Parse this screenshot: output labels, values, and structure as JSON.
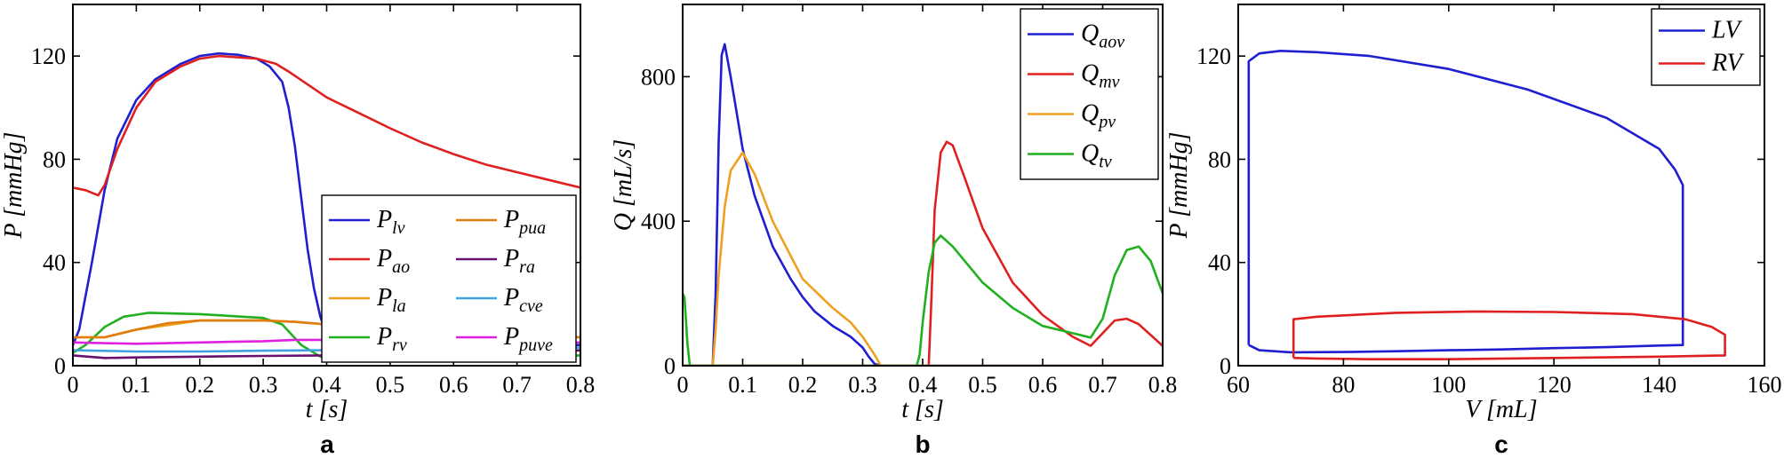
{
  "chart_data": [
    {
      "type": "line",
      "panel": "a",
      "xlabel": "t [s]",
      "ylabel": "P [mmHg]",
      "xlim": [
        0,
        0.8
      ],
      "ylim": [
        0,
        140
      ],
      "xticks": [
        "0",
        "0.1",
        "0.2",
        "0.3",
        "0.4",
        "0.5",
        "0.6",
        "0.7",
        "0.8"
      ],
      "yticks": [
        "0",
        "40",
        "80",
        "120"
      ],
      "legend_position": "lower-right",
      "legend_columns": 2,
      "series": [
        {
          "name": "P",
          "sub": "lv",
          "color": "#1f1fd1",
          "x": [
            0,
            0.01,
            0.03,
            0.05,
            0.07,
            0.1,
            0.13,
            0.17,
            0.2,
            0.23,
            0.26,
            0.29,
            0.31,
            0.33,
            0.34,
            0.35,
            0.36,
            0.37,
            0.38,
            0.39,
            0.4,
            0.42,
            0.45,
            0.5,
            0.6,
            0.7,
            0.8
          ],
          "y": [
            8,
            14,
            40,
            68,
            88,
            103,
            111,
            117,
            120,
            121,
            120.5,
            119,
            116,
            110,
            100,
            85,
            65,
            45,
            30,
            19,
            12,
            8,
            7,
            6.5,
            7,
            7.5,
            8
          ]
        },
        {
          "name": "P",
          "sub": "ao",
          "color": "#e02020",
          "x": [
            0,
            0.02,
            0.04,
            0.05,
            0.07,
            0.1,
            0.13,
            0.17,
            0.2,
            0.23,
            0.26,
            0.29,
            0.32,
            0.34,
            0.4,
            0.45,
            0.5,
            0.55,
            0.6,
            0.65,
            0.7,
            0.75,
            0.8
          ],
          "y": [
            69,
            68,
            66,
            70,
            84,
            100,
            110,
            116,
            119,
            120,
            119.5,
            119,
            117,
            114,
            104,
            98,
            92,
            86.5,
            82,
            78,
            75,
            72,
            69
          ]
        },
        {
          "name": "P",
          "sub": "la",
          "color": "#f0a020",
          "x": [
            0,
            0.05,
            0.1,
            0.2,
            0.3,
            0.35,
            0.4,
            0.5,
            0.6,
            0.7,
            0.8
          ],
          "y": [
            11,
            11,
            14,
            17.5,
            17.5,
            17,
            16,
            14.5,
            13,
            12,
            11
          ]
        },
        {
          "name": "P",
          "sub": "rv",
          "color": "#20b020",
          "x": [
            0,
            0.02,
            0.05,
            0.08,
            0.12,
            0.2,
            0.3,
            0.33,
            0.36,
            0.39,
            0.42,
            0.5,
            0.6,
            0.7,
            0.8
          ],
          "y": [
            5,
            8,
            15,
            19,
            20.5,
            20,
            18.5,
            16,
            8,
            3.5,
            2.5,
            2.5,
            2.8,
            3.2,
            4
          ]
        },
        {
          "name": "P",
          "sub": "pua",
          "color": "#e07d10",
          "x": [
            0,
            0.05,
            0.1,
            0.15,
            0.2,
            0.3,
            0.35,
            0.4,
            0.5,
            0.6,
            0.7,
            0.8
          ],
          "y": [
            11,
            11,
            14,
            16.5,
            17.5,
            17.5,
            17,
            16,
            14.5,
            13,
            12,
            11
          ]
        },
        {
          "name": "P",
          "sub": "ra",
          "color": "#6a1070",
          "x": [
            0,
            0.05,
            0.1,
            0.2,
            0.3,
            0.4,
            0.5,
            0.6,
            0.7,
            0.75,
            0.8
          ],
          "y": [
            4,
            3,
            3.2,
            3.5,
            3.8,
            4,
            4,
            4.2,
            4.5,
            5,
            6
          ]
        },
        {
          "name": "P",
          "sub": "cve",
          "color": "#40a0e0",
          "x": [
            0,
            0.1,
            0.2,
            0.3,
            0.4,
            0.5,
            0.6,
            0.7,
            0.8
          ],
          "y": [
            6,
            5.5,
            5.5,
            5.8,
            6,
            6,
            6.2,
            6.5,
            7
          ]
        },
        {
          "name": "P",
          "sub": "puve",
          "color": "#e020e0",
          "x": [
            0,
            0.1,
            0.2,
            0.3,
            0.35,
            0.4,
            0.5,
            0.6,
            0.7,
            0.8
          ],
          "y": [
            9,
            8.5,
            9,
            9.5,
            10,
            10,
            9.5,
            9,
            8.8,
            9
          ]
        }
      ]
    },
    {
      "type": "line",
      "panel": "b",
      "xlabel": "t [s]",
      "ylabel": "Q [mL/s]",
      "xlim": [
        0,
        0.8
      ],
      "ylim": [
        0,
        1000
      ],
      "xticks": [
        "0",
        "0.1",
        "0.2",
        "0.3",
        "0.4",
        "0.5",
        "0.6",
        "0.7",
        "0.8"
      ],
      "yticks": [
        "0",
        "400",
        "800"
      ],
      "legend_position": "top-right",
      "legend_columns": 1,
      "series": [
        {
          "name": "Q",
          "sub": "aov",
          "color": "#1f1fd1",
          "x": [
            0,
            0.045,
            0.05,
            0.055,
            0.06,
            0.065,
            0.07,
            0.08,
            0.09,
            0.1,
            0.12,
            0.15,
            0.18,
            0.2,
            0.22,
            0.25,
            0.28,
            0.3,
            0.31,
            0.32,
            0.33,
            0.8
          ],
          "y": [
            0,
            0,
            0,
            200,
            620,
            860,
            890,
            800,
            700,
            600,
            470,
            330,
            240,
            190,
            150,
            110,
            80,
            50,
            25,
            5,
            0,
            0
          ]
        },
        {
          "name": "Q",
          "sub": "mv",
          "color": "#e02020",
          "x": [
            0,
            0.41,
            0.415,
            0.42,
            0.43,
            0.44,
            0.45,
            0.47,
            0.5,
            0.55,
            0.6,
            0.65,
            0.68,
            0.7,
            0.72,
            0.74,
            0.76,
            0.78,
            0.8
          ],
          "y": [
            0,
            0,
            200,
            430,
            590,
            620,
            610,
            520,
            380,
            230,
            140,
            80,
            55,
            90,
            125,
            130,
            115,
            85,
            55
          ]
        },
        {
          "name": "Q",
          "sub": "pv",
          "color": "#f0a020",
          "x": [
            0,
            0.045,
            0.05,
            0.055,
            0.06,
            0.07,
            0.08,
            0.1,
            0.12,
            0.15,
            0.2,
            0.25,
            0.28,
            0.3,
            0.32,
            0.33,
            0.8
          ],
          "y": [
            0,
            0,
            0,
            100,
            250,
            440,
            540,
            590,
            530,
            400,
            240,
            160,
            120,
            80,
            30,
            0,
            0
          ]
        },
        {
          "name": "Q",
          "sub": "tv",
          "color": "#20b020",
          "x": [
            0,
            0.003,
            0.008,
            0.012,
            0.39,
            0.395,
            0.4,
            0.41,
            0.42,
            0.43,
            0.45,
            0.5,
            0.55,
            0.6,
            0.65,
            0.68,
            0.7,
            0.72,
            0.74,
            0.76,
            0.78,
            0.8
          ],
          "y": [
            200,
            190,
            60,
            0,
            0,
            30,
            120,
            260,
            340,
            360,
            330,
            230,
            160,
            110,
            90,
            78,
            130,
            250,
            320,
            330,
            290,
            200
          ]
        }
      ]
    },
    {
      "type": "line",
      "panel": "c",
      "xlabel": "V [mL]",
      "ylabel": "P [mmHg]",
      "xlim": [
        60,
        160
      ],
      "ylim": [
        0,
        140
      ],
      "xticks": [
        "60",
        "80",
        "100",
        "120",
        "140",
        "160"
      ],
      "yticks": [
        "0",
        "40",
        "80",
        "120"
      ],
      "legend_position": "top-right",
      "legend_columns": 1,
      "series": [
        {
          "name": "LV",
          "sub": "",
          "color": "#1f1fd1",
          "x": [
            62,
            62,
            64,
            68,
            75,
            85,
            100,
            115,
            130,
            140,
            143,
            144.5,
            144.5,
            144.5,
            140,
            130,
            120,
            110,
            100,
            90,
            80,
            70,
            64,
            62
          ],
          "y": [
            8,
            118,
            121,
            122,
            121.5,
            120,
            115,
            107,
            96,
            84,
            76,
            70,
            50,
            8,
            7.8,
            7.2,
            6.8,
            6.3,
            6,
            5.6,
            5.3,
            5.2,
            6,
            8
          ]
        },
        {
          "name": "RV",
          "sub": "",
          "color": "#e02020",
          "x": [
            70.5,
            70.5,
            75,
            90,
            105,
            120,
            135,
            145,
            150,
            152.5,
            152.5,
            152.5,
            140,
            120,
            100,
            85,
            75,
            71,
            70.5
          ],
          "y": [
            3,
            18,
            19,
            20.5,
            21,
            20.8,
            20,
            18,
            15,
            12,
            8,
            4,
            3.5,
            3,
            2.5,
            2.5,
            2.8,
            3,
            3
          ]
        }
      ]
    }
  ]
}
